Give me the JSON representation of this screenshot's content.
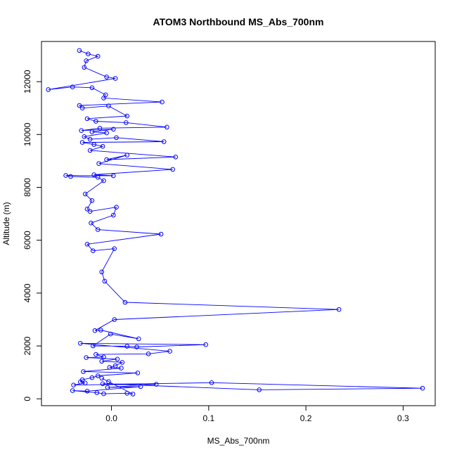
{
  "chart_data": {
    "type": "line",
    "title": "ATOM3 Northbound MS_Abs_700nm",
    "xlabel": "MS_Abs_700nm",
    "ylabel": "Altitude (m)",
    "xlim": [
      -0.072,
      0.333
    ],
    "ylim": [
      -260,
      13520
    ],
    "x_ticks": [
      0.0,
      0.1,
      0.2,
      0.3
    ],
    "x_tick_labels": [
      "0.0",
      "0.1",
      "0.2",
      "0.3"
    ],
    "y_ticks": [
      0,
      2000,
      4000,
      6000,
      8000,
      10000,
      12000
    ],
    "y_tick_labels": [
      "0",
      "2000",
      "4000",
      "6000",
      "8000",
      "10000",
      "12000"
    ],
    "grid": false,
    "legend": "none",
    "series": [
      {
        "color": "#0000ff",
        "marker": "open-circle",
        "points": [
          [
            -0.033,
            13180
          ],
          [
            -0.024,
            13050
          ],
          [
            -0.014,
            12960
          ],
          [
            -0.026,
            12790
          ],
          [
            -0.028,
            12540
          ],
          [
            -0.005,
            12180
          ],
          [
            0.004,
            12120
          ],
          [
            -0.065,
            11700
          ],
          [
            -0.04,
            11800
          ],
          [
            -0.02,
            11770
          ],
          [
            -0.006,
            11500
          ],
          [
            -0.008,
            11380
          ],
          [
            0.052,
            11230
          ],
          [
            -0.033,
            11100
          ],
          [
            -0.03,
            11000
          ],
          [
            -0.003,
            11080
          ],
          [
            0.016,
            10700
          ],
          [
            -0.025,
            10600
          ],
          [
            -0.016,
            10500
          ],
          [
            0.015,
            10450
          ],
          [
            0.057,
            10280
          ],
          [
            -0.012,
            10240
          ],
          [
            -0.031,
            10150
          ],
          [
            0.002,
            10200
          ],
          [
            -0.02,
            10100
          ],
          [
            -0.005,
            10060
          ],
          [
            -0.028,
            9920
          ],
          [
            -0.022,
            9820
          ],
          [
            0.005,
            9880
          ],
          [
            0.054,
            9730
          ],
          [
            -0.03,
            9700
          ],
          [
            -0.018,
            9620
          ],
          [
            -0.009,
            9550
          ],
          [
            -0.022,
            9400
          ],
          [
            0.066,
            9150
          ],
          [
            -0.005,
            9050
          ],
          [
            0.016,
            9220
          ],
          [
            -0.013,
            8900
          ],
          [
            0.063,
            8680
          ],
          [
            -0.018,
            8480
          ],
          [
            0.002,
            8440
          ],
          [
            -0.047,
            8450
          ],
          [
            -0.042,
            8410
          ],
          [
            -0.014,
            8380
          ],
          [
            -0.008,
            8250
          ],
          [
            -0.027,
            7750
          ],
          [
            -0.02,
            7500
          ],
          [
            -0.025,
            7180
          ],
          [
            -0.022,
            7090
          ],
          [
            0.005,
            7250
          ],
          [
            0.002,
            6950
          ],
          [
            -0.021,
            6650
          ],
          [
            -0.014,
            6400
          ],
          [
            0.051,
            6230
          ],
          [
            -0.025,
            5850
          ],
          [
            -0.019,
            5600
          ],
          [
            0.003,
            5680
          ],
          [
            -0.01,
            4800
          ],
          [
            -0.007,
            4450
          ],
          [
            0.014,
            3650
          ],
          [
            0.234,
            3380
          ],
          [
            0.003,
            3000
          ],
          [
            -0.017,
            2580
          ],
          [
            -0.011,
            2600
          ],
          [
            0.028,
            2270
          ],
          [
            -0.001,
            2450
          ],
          [
            -0.019,
            2000
          ],
          [
            0.016,
            1990
          ],
          [
            0.026,
            1960
          ],
          [
            0.097,
            2050
          ],
          [
            -0.032,
            2100
          ],
          [
            0.06,
            1800
          ],
          [
            0.038,
            1700
          ],
          [
            -0.016,
            1680
          ],
          [
            -0.008,
            1580
          ],
          [
            -0.026,
            1560
          ],
          [
            0.006,
            1500
          ],
          [
            -0.01,
            1420
          ],
          [
            0.011,
            1380
          ],
          [
            0.004,
            1250
          ],
          [
            -0.002,
            1190
          ],
          [
            0.01,
            1160
          ],
          [
            -0.029,
            1030
          ],
          [
            0.027,
            980
          ],
          [
            -0.014,
            870
          ],
          [
            -0.02,
            800
          ],
          [
            -0.03,
            720
          ],
          [
            -0.032,
            640
          ],
          [
            -0.027,
            600
          ],
          [
            -0.039,
            520
          ],
          [
            0.103,
            610
          ],
          [
            0.32,
            400
          ],
          [
            0.152,
            340
          ],
          [
            -0.009,
            570
          ],
          [
            0.046,
            550
          ],
          [
            -0.004,
            430
          ],
          [
            0.03,
            460
          ],
          [
            -0.025,
            290
          ],
          [
            -0.04,
            310
          ],
          [
            -0.015,
            230
          ],
          [
            -0.008,
            190
          ],
          [
            0.016,
            210
          ],
          [
            0.022,
            180
          ],
          [
            -0.01,
            780
          ],
          [
            -0.003,
            650
          ]
        ]
      }
    ]
  }
}
